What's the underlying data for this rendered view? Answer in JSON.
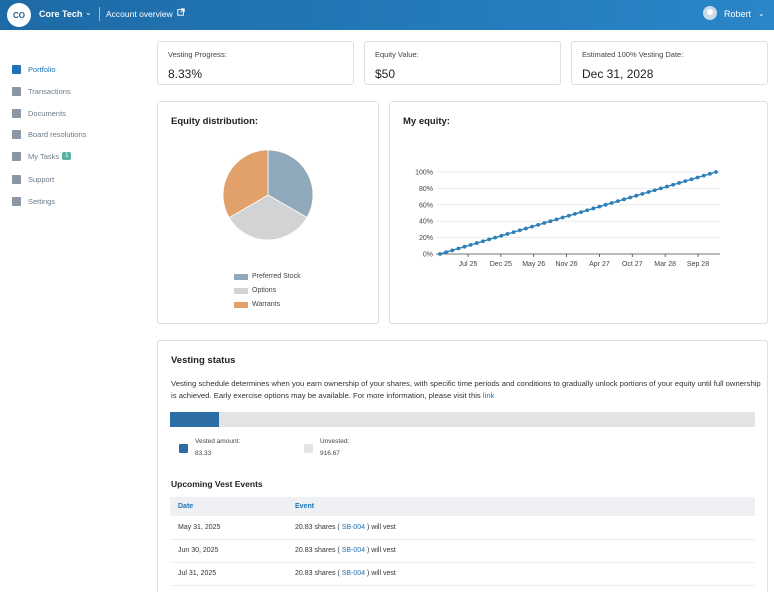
{
  "header": {
    "logo_text": "CO",
    "company": "Core Tech",
    "account_link": "Account overview",
    "user_name": "Robert"
  },
  "sidebar": {
    "items": [
      {
        "label": "Portfolio",
        "icon": "portfolio-icon",
        "active": true
      },
      {
        "label": "Transactions",
        "icon": "transactions-icon"
      },
      {
        "label": "Documents",
        "icon": "documents-icon"
      },
      {
        "label": "Board resolutions",
        "icon": "board-icon"
      },
      {
        "label": "My Tasks",
        "icon": "tasks-icon",
        "badge": "1"
      },
      {
        "label": "Support",
        "icon": "support-icon"
      },
      {
        "label": "Settings",
        "icon": "settings-icon"
      }
    ]
  },
  "stats": [
    {
      "label": "Vesting Progress:",
      "value": "8.33%"
    },
    {
      "label": "Equity Value:",
      "value": "$50"
    },
    {
      "label": "Estimated 100% Vesting Date:",
      "value": "Dec 31, 2028"
    }
  ],
  "distribution": {
    "title": "Equity distribution:",
    "legend": [
      {
        "label": "Preferred Stock",
        "color": "#8fa9bb"
      },
      {
        "label": "Options",
        "color": "#d2d3d4"
      },
      {
        "label": "Warrants",
        "color": "#e2a06b"
      }
    ]
  },
  "equity_chart": {
    "title": "My equity:"
  },
  "chart_data": [
    {
      "type": "pie",
      "labels": [
        "Preferred Stock",
        "Options",
        "Warrants"
      ],
      "values": [
        33.3,
        33.3,
        33.4
      ],
      "colors": [
        "#8fa9bb",
        "#d2d3d4",
        "#e2a06b"
      ]
    },
    {
      "type": "line",
      "x_tick_labels": [
        "Jul 25",
        "Dec 25",
        "May 26",
        "Nov 26",
        "Apr 27",
        "Oct 27",
        "Mar 28",
        "Sep 28"
      ],
      "y_tick_labels": [
        "0%",
        "20%",
        "40%",
        "60%",
        "80%",
        "100%"
      ],
      "ylim": [
        0,
        100
      ],
      "x_range": [
        "Mar 2025",
        "Dec 2028"
      ],
      "points": 46,
      "start_value": 0,
      "end_value": 100,
      "color": "#2c7fb8",
      "grid": true
    }
  ],
  "vesting": {
    "title": "Vesting status",
    "description": "Vesting schedule determines when you earn ownership of your shares, with specific time periods and conditions to gradually unlock portions of your equity until full ownership is achieved. Early exercise options may be available. For more information, please visit this",
    "link_text": "link",
    "progress_fraction": 0.0833,
    "vested_label": "Vested amount:",
    "vested_value": "83.33",
    "unvested_label": "Unvested:",
    "unvested_value": "916.67",
    "vested_color": "#2c6ea3",
    "unvested_color": "#e3e4e6"
  },
  "upcoming": {
    "title": "Upcoming Vest Events",
    "columns": [
      "Date",
      "Event"
    ],
    "rows": [
      {
        "date": "May 31, 2025",
        "pre": "20.83 shares ( ",
        "link": "SB-004",
        "post": " ) will vest"
      },
      {
        "date": "Jun 30, 2025",
        "pre": "20.83 shares ( ",
        "link": "SB-004",
        "post": " ) will vest"
      },
      {
        "date": "Jul 31, 2025",
        "pre": "20.83 shares ( ",
        "link": "SB-004",
        "post": " ) will vest"
      }
    ]
  }
}
